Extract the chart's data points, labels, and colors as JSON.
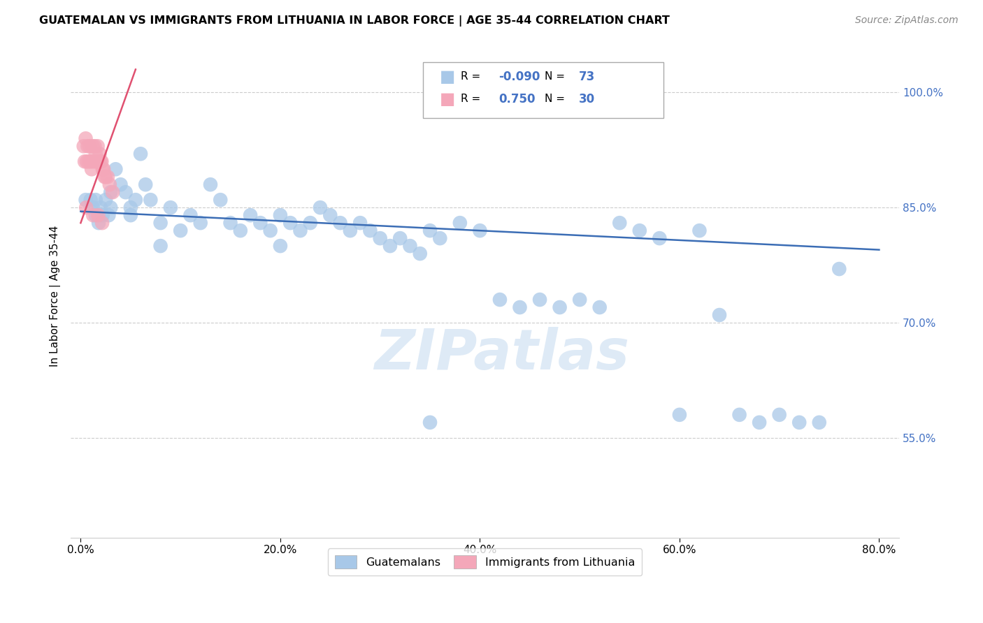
{
  "title": "GUATEMALAN VS IMMIGRANTS FROM LITHUANIA IN LABOR FORCE | AGE 35-44 CORRELATION CHART",
  "source": "Source: ZipAtlas.com",
  "ylabel": "In Labor Force | Age 35-44",
  "x_tick_labels": [
    "0.0%",
    "20.0%",
    "40.0%",
    "60.0%",
    "80.0%"
  ],
  "x_tick_values": [
    0,
    20,
    40,
    60,
    80
  ],
  "y_tick_labels": [
    "100.0%",
    "85.0%",
    "70.0%",
    "55.0%"
  ],
  "y_tick_values": [
    100,
    85,
    70,
    55
  ],
  "xlim": [
    -1,
    82
  ],
  "ylim": [
    42,
    105
  ],
  "blue_R": -0.09,
  "blue_N": 73,
  "pink_R": 0.75,
  "pink_N": 30,
  "blue_color": "#A8C8E8",
  "pink_color": "#F4A7B9",
  "blue_line_color": "#3B6DB5",
  "pink_line_color": "#E05070",
  "legend_label_blue": "Guatemalans",
  "legend_label_pink": "Immigrants from Lithuania",
  "watermark": "ZIPatlas",
  "blue_line_x0": 0,
  "blue_line_y0": 84.5,
  "blue_line_x1": 80,
  "blue_line_y1": 79.5,
  "pink_line_x0": 0.0,
  "pink_line_y0": 83.0,
  "pink_line_x1": 5.5,
  "pink_line_y1": 103.0,
  "blue_x": [
    1.0,
    1.2,
    1.5,
    1.8,
    2.0,
    2.2,
    2.5,
    2.8,
    3.0,
    3.5,
    4.0,
    4.5,
    5.0,
    5.5,
    6.0,
    6.5,
    7.0,
    8.0,
    9.0,
    10.0,
    11.0,
    12.0,
    13.0,
    14.0,
    15.0,
    16.0,
    17.0,
    18.0,
    19.0,
    20.0,
    21.0,
    22.0,
    23.0,
    24.0,
    25.0,
    26.0,
    27.0,
    28.0,
    29.0,
    30.0,
    31.0,
    32.0,
    33.0,
    34.0,
    35.0,
    36.0,
    38.0,
    40.0,
    42.0,
    44.0,
    46.0,
    48.0,
    50.0,
    52.0,
    54.0,
    56.0,
    58.0,
    60.0,
    62.0,
    64.0,
    66.0,
    68.0,
    70.0,
    72.0,
    74.0,
    76.0,
    0.5,
    1.5,
    3.0,
    5.0,
    8.0,
    20.0,
    35.0
  ],
  "blue_y": [
    86,
    85,
    84,
    83,
    85,
    84,
    86,
    84,
    87,
    90,
    88,
    87,
    85,
    86,
    92,
    88,
    86,
    83,
    85,
    82,
    84,
    83,
    88,
    86,
    83,
    82,
    84,
    83,
    82,
    84,
    83,
    82,
    83,
    85,
    84,
    83,
    82,
    83,
    82,
    81,
    80,
    81,
    80,
    79,
    82,
    81,
    83,
    82,
    73,
    72,
    73,
    72,
    73,
    72,
    83,
    82,
    81,
    58,
    82,
    71,
    58,
    57,
    58,
    57,
    57,
    77,
    86,
    86,
    85,
    84,
    80,
    80,
    57
  ],
  "pink_x": [
    0.3,
    0.4,
    0.5,
    0.6,
    0.7,
    0.8,
    0.9,
    1.0,
    1.1,
    1.2,
    1.3,
    1.4,
    1.5,
    1.6,
    1.7,
    1.8,
    1.9,
    2.0,
    2.1,
    2.2,
    2.3,
    2.4,
    2.5,
    2.7,
    2.9,
    3.2,
    0.55,
    1.25,
    1.75,
    2.15
  ],
  "pink_y": [
    93,
    91,
    94,
    91,
    93,
    91,
    93,
    91,
    90,
    93,
    91,
    93,
    92,
    91,
    93,
    91,
    92,
    91,
    91,
    90,
    90,
    89,
    89,
    89,
    88,
    87,
    85,
    84,
    84,
    83
  ]
}
